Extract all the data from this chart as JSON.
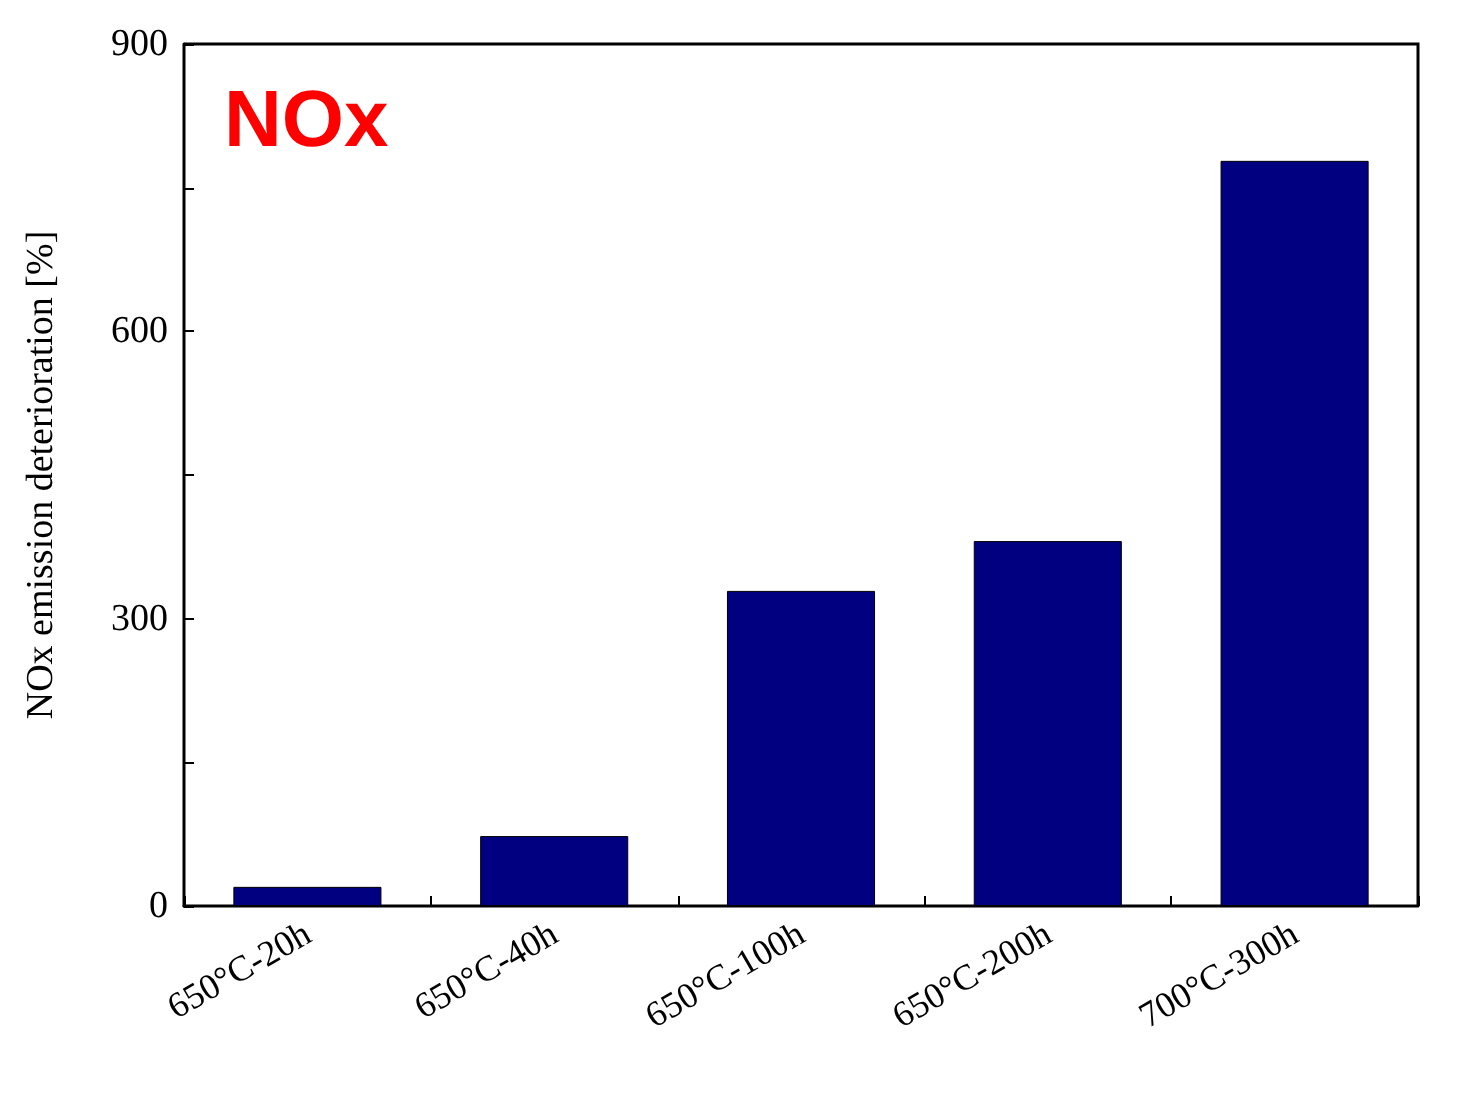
{
  "chart_data": {
    "type": "bar",
    "ylabel": "NOx emission deterioration [%]",
    "annotations": [
      "NOx"
    ],
    "categories": [
      "650°C-20h",
      "650°C-40h",
      "650°C-100h",
      "650°C-200h",
      "700°C-300h"
    ],
    "values": [
      20,
      73,
      329,
      381,
      778
    ],
    "color": "#000080",
    "ylim": [
      0,
      900
    ],
    "yticks": [
      0,
      {
        "value": 150,
        "label": null
      },
      300,
      {
        "value": 450,
        "label": null
      },
      600,
      {
        "value": 750,
        "label": null
      },
      900
    ],
    "grid": false
  }
}
